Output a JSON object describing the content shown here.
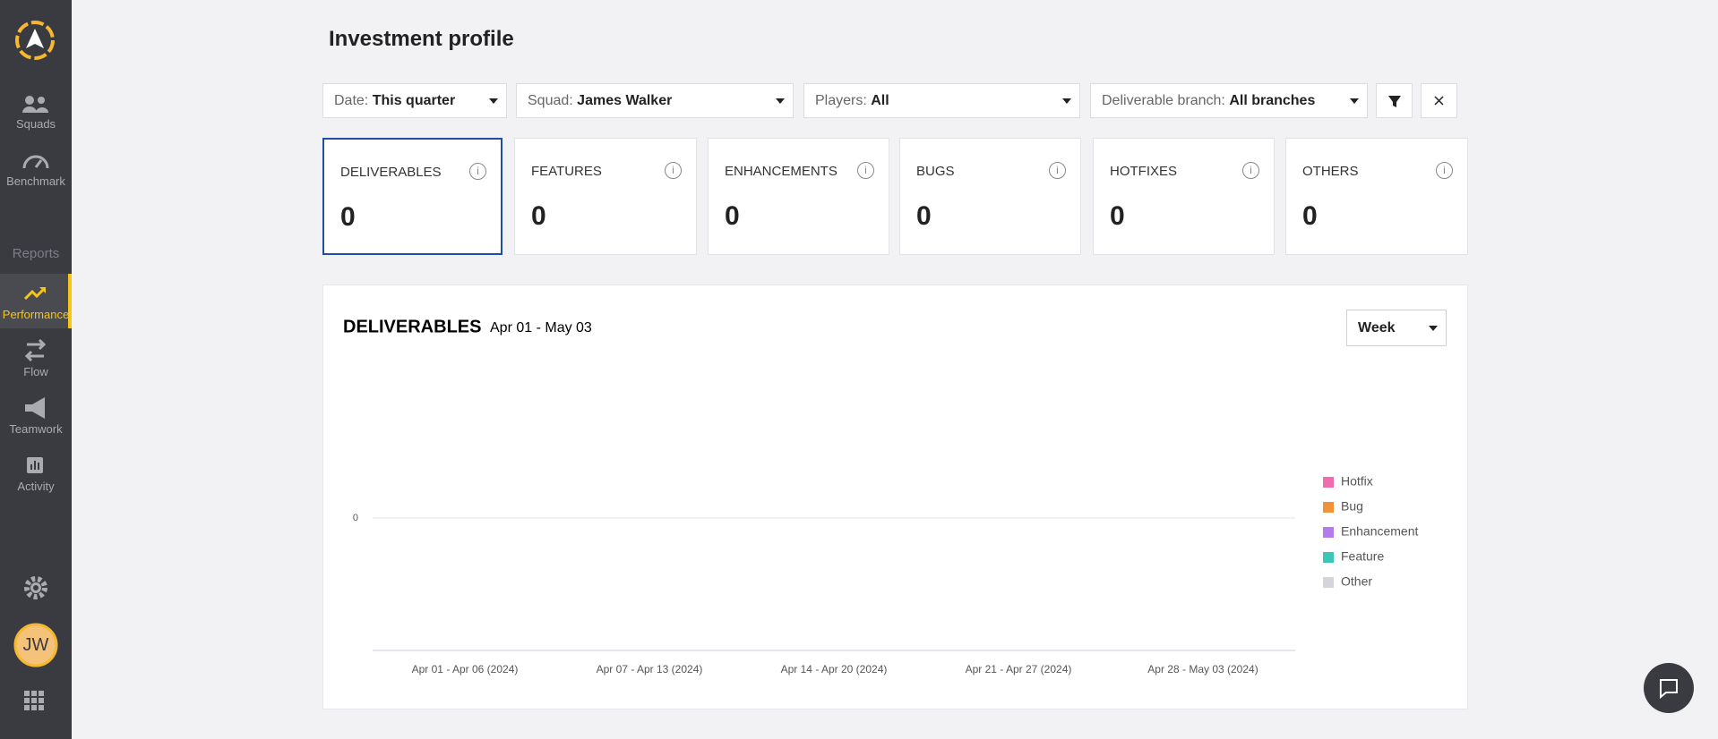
{
  "sidebar": {
    "top": [
      "Squads",
      "Benchmark"
    ],
    "section": "Reports",
    "reports": [
      "Performance",
      "Flow",
      "Teamwork",
      "Activity"
    ],
    "avatar": "JW"
  },
  "header": {
    "title": "Investment profile"
  },
  "filters": [
    {
      "label": "Date:",
      "value": "This quarter"
    },
    {
      "label": "Squad:",
      "value": "James Walker"
    },
    {
      "label": "Players:",
      "value": "All"
    },
    {
      "label": "Deliverable branch:",
      "value": "All branches"
    }
  ],
  "cards": [
    {
      "label": "DELIVERABLES",
      "value": 0
    },
    {
      "label": "FEATURES",
      "value": 0
    },
    {
      "label": "ENHANCEMENTS",
      "value": 0
    },
    {
      "label": "BUGS",
      "value": 0
    },
    {
      "label": "HOTFIXES",
      "value": 0
    },
    {
      "label": "OTHERS",
      "value": 0
    }
  ],
  "chart_data": {
    "type": "bar",
    "stacked": true,
    "title": "DELIVERABLES",
    "subtitle": "Apr 01 - May 03",
    "interval": "Week",
    "categories": [
      "Apr 01 - Apr 06 (2024)",
      "Apr 07 - Apr 13 (2024)",
      "Apr 14 - Apr 20 (2024)",
      "Apr 21 - Apr 27 (2024)",
      "Apr 28 - May 03 (2024)"
    ],
    "series": [
      {
        "name": "Hotfix",
        "color": "#f06bb0",
        "values": [
          0,
          0,
          0,
          0,
          0
        ]
      },
      {
        "name": "Bug",
        "color": "#f0923a",
        "values": [
          0,
          0,
          0,
          0,
          0
        ]
      },
      {
        "name": "Enhancement",
        "color": "#b57bea",
        "values": [
          0,
          0,
          0,
          0,
          0
        ]
      },
      {
        "name": "Feature",
        "color": "#3cc6b8",
        "values": [
          0,
          0,
          0,
          0,
          0
        ]
      },
      {
        "name": "Other",
        "color": "#d3d5da",
        "values": [
          0,
          0,
          0,
          0,
          0
        ]
      }
    ],
    "ylim": [
      -1,
      1
    ],
    "yticks": [
      0
    ],
    "legend": "right"
  }
}
